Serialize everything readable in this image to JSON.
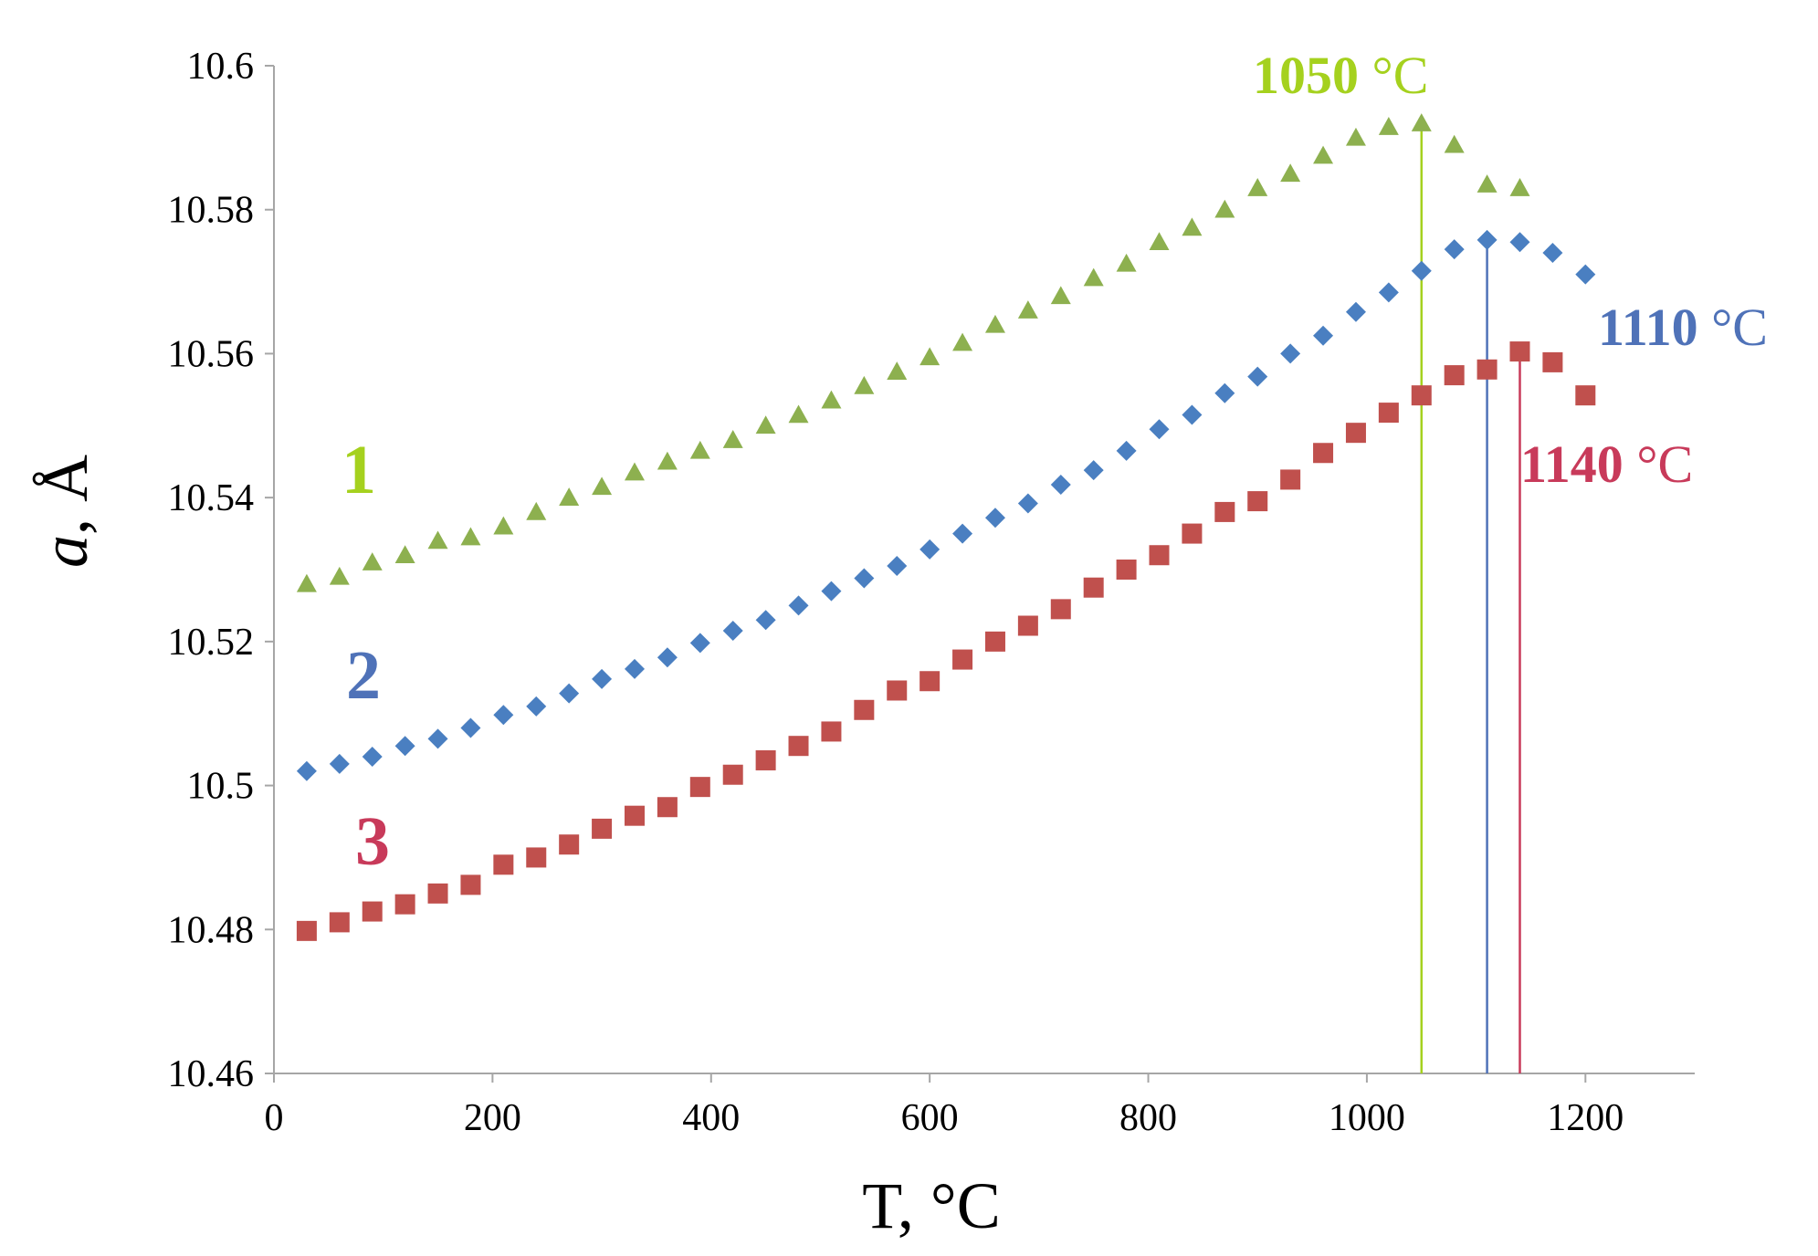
{
  "chart_data": {
    "type": "scatter",
    "title": "",
    "xlabel": "T, °C",
    "ylabel_italic": "a",
    "ylabel_rest": ", Å",
    "xlim": [
      0,
      1300
    ],
    "ylim": [
      10.46,
      10.6
    ],
    "x_ticks": [
      0,
      200,
      400,
      600,
      800,
      1000,
      1200
    ],
    "x_tick_labels": [
      "0",
      "200",
      "400",
      "600",
      "800",
      "1000",
      "1200"
    ],
    "y_ticks": [
      10.46,
      10.48,
      10.5,
      10.52,
      10.54,
      10.56,
      10.58,
      10.6
    ],
    "y_tick_labels": [
      "10.46",
      "10.48",
      "10.5",
      "10.52",
      "10.54",
      "10.56",
      "10.58",
      "10.6"
    ],
    "grid": false,
    "series": [
      {
        "name": "1",
        "marker": "triangle",
        "color": "#8db04f",
        "label_color": "#a5d11e",
        "x": [
          30,
          60,
          90,
          120,
          150,
          180,
          210,
          240,
          270,
          300,
          330,
          360,
          390,
          420,
          450,
          480,
          510,
          540,
          570,
          600,
          630,
          660,
          690,
          720,
          750,
          780,
          810,
          840,
          870,
          900,
          930,
          960,
          990,
          1020,
          1050,
          1080,
          1110,
          1140
        ],
        "y": [
          10.528,
          10.529,
          10.531,
          10.532,
          10.534,
          10.5345,
          10.536,
          10.538,
          10.54,
          10.5415,
          10.5435,
          10.545,
          10.5465,
          10.548,
          10.55,
          10.5515,
          10.5535,
          10.5555,
          10.5575,
          10.5595,
          10.5615,
          10.564,
          10.566,
          10.568,
          10.5705,
          10.5725,
          10.5755,
          10.5775,
          10.58,
          10.583,
          10.585,
          10.5875,
          10.59,
          10.5915,
          10.592,
          10.589,
          10.5835,
          10.583
        ]
      },
      {
        "name": "2",
        "marker": "diamond",
        "color": "#4a7fc1",
        "label_color": "#4f72b8",
        "x": [
          30,
          60,
          90,
          120,
          150,
          180,
          210,
          240,
          270,
          300,
          330,
          360,
          390,
          420,
          450,
          480,
          510,
          540,
          570,
          600,
          630,
          660,
          690,
          720,
          750,
          780,
          810,
          840,
          870,
          900,
          930,
          960,
          990,
          1020,
          1050,
          1080,
          1110,
          1140,
          1170,
          1200
        ],
        "y": [
          10.502,
          10.503,
          10.504,
          10.5055,
          10.5065,
          10.508,
          10.5098,
          10.511,
          10.5128,
          10.5148,
          10.5162,
          10.5178,
          10.5198,
          10.5215,
          10.523,
          10.525,
          10.527,
          10.5288,
          10.5305,
          10.5328,
          10.535,
          10.5372,
          10.5392,
          10.5418,
          10.5438,
          10.5465,
          10.5495,
          10.5515,
          10.5545,
          10.5568,
          10.56,
          10.5625,
          10.5658,
          10.5685,
          10.5715,
          10.5745,
          10.5758,
          10.5755,
          10.574,
          10.571
        ]
      },
      {
        "name": "3",
        "marker": "square",
        "color": "#c0504d",
        "label_color": "#c83a5a",
        "x": [
          30,
          60,
          90,
          120,
          150,
          180,
          210,
          240,
          270,
          300,
          330,
          360,
          390,
          420,
          450,
          480,
          510,
          540,
          570,
          600,
          630,
          660,
          690,
          720,
          750,
          780,
          810,
          840,
          870,
          900,
          930,
          960,
          990,
          1020,
          1050,
          1080,
          1110,
          1140,
          1170,
          1200
        ],
        "y": [
          10.4798,
          10.481,
          10.4825,
          10.4835,
          10.485,
          10.4862,
          10.489,
          10.49,
          10.4918,
          10.494,
          10.4958,
          10.497,
          10.4998,
          10.5015,
          10.5035,
          10.5055,
          10.5075,
          10.5105,
          10.5132,
          10.5145,
          10.5175,
          10.52,
          10.5222,
          10.5245,
          10.5275,
          10.53,
          10.532,
          10.535,
          10.538,
          10.5395,
          10.5425,
          10.5462,
          10.549,
          10.5518,
          10.5542,
          10.557,
          10.5578,
          10.5603,
          10.5588,
          10.5542
        ]
      }
    ],
    "peak_lines": [
      {
        "x": 1050,
        "y_top": 10.5915,
        "color": "#a5d11e"
      },
      {
        "x": 1110,
        "y_top": 10.5755,
        "color": "#4f72b8"
      },
      {
        "x": 1140,
        "y_top": 10.5598,
        "color": "#c83a5a"
      }
    ],
    "annotations": {
      "series_1": "1",
      "series_2": "2",
      "series_3": "3",
      "peak_1_num": "1050",
      "peak_1_unit": " °C",
      "peak_2_num": "1110",
      "peak_2_unit": " °C",
      "peak_3_num": "1140",
      "peak_3_unit": " °C"
    }
  }
}
